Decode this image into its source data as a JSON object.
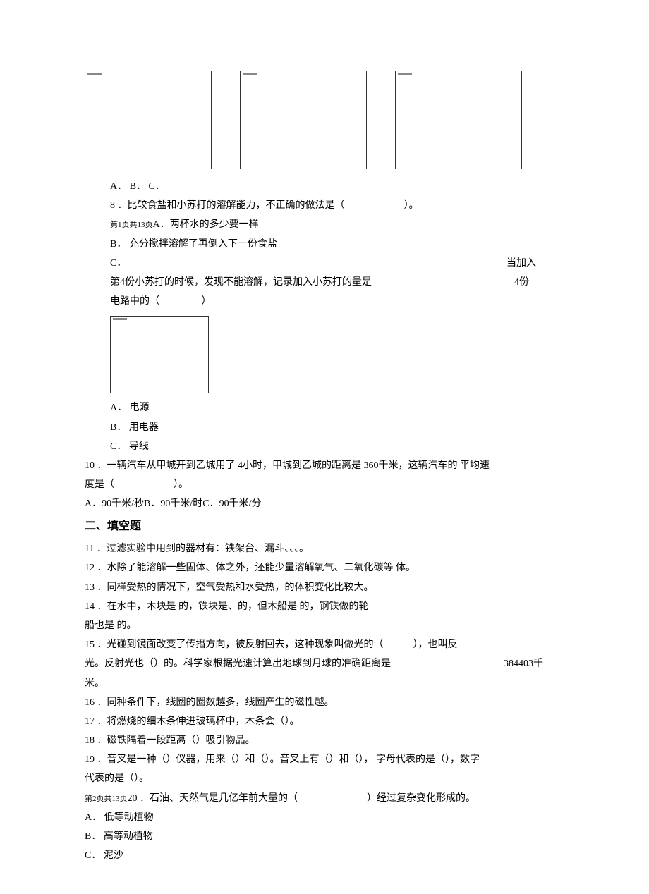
{
  "q7": {
    "options_line": "A． B． C．"
  },
  "q8": {
    "stem": "8 ．比较食盐和小苏打的溶解能力，不正确的做法是（　　　　　　）。",
    "page_ref": "第1页共13页",
    "opt_a": "A．两杯水的多少要一样",
    "opt_b": "B． 充分搅拌溶解了再倒入下一份食盐",
    "opt_c_left": "C．",
    "opt_c_right": "当加入",
    "opt_d_left": "第4份小苏打的时候，发现不能溶解，记录加入小苏打的量是",
    "opt_d_right": "4份"
  },
  "q9": {
    "stem": "电路中的（　　　　 ）",
    "opt_a": "A． 电源",
    "opt_b": "B． 用电器",
    "opt_c": "C． 导线"
  },
  "q10": {
    "stem_l1": "10 ．一辆汽车从甲城开到乙城用了 4小时，甲城到乙城的距离是 360千米，这辆汽车的 平均速",
    "stem_l2": "度是（　　　　　　）。",
    "opts": "A．90千米/秒B．90千米/时C．90千米/分"
  },
  "section2": "二、填空题",
  "q11": "11 ．过滤实验中用到的器材有：铁架台、漏斗、、、。",
  "q12": "12 ．水除了能溶解一些固体、体之外，还能少量溶解氧气、二氧化碳等 体。",
  "q13": "13 ．同样受热的情况下，空气受热和水受热，的体积变化比较大。",
  "q14_l1": "14 ．在水中，木块是 的，铁块是、的，但木船是 的，钢铁做的轮",
  "q14_l2": "船也是 的。",
  "q15_l1": "15 ．光碰到镜面改变了传播方向，被反射回去，这种现象叫做光的（　　　），也叫反",
  "q15_l2_left": "光。反射光也（）的。科学家根据光速计算出地球到月球的准确距离是",
  "q15_l2_right": "384403千",
  "q15_l3": "米。",
  "q16": "16 ．同种条件下，线圈的圈数越多，线圈产生的磁性越。",
  "q17": "17 ．将燃烧的细木条伸进玻璃杯中，木条会（）。",
  "q18": "18 ．磁铁隔着一段距离（）吸引物品。",
  "q19_l1": "19 ．音叉是一种（）仪器，用来（）和（）。音叉上有（）和（）， 字母代表的是（），数字",
  "q19_l2": "代表的是（）。",
  "q20": {
    "page_ref": "第2页共13页",
    "stem": "20 ．石油、天然气是几亿年前大量的（　　　　　　　）经过复杂变化形成的。",
    "opt_a": "A． 低等动植物",
    "opt_b": "B． 高等动植物",
    "opt_c": "C． 泥沙"
  }
}
